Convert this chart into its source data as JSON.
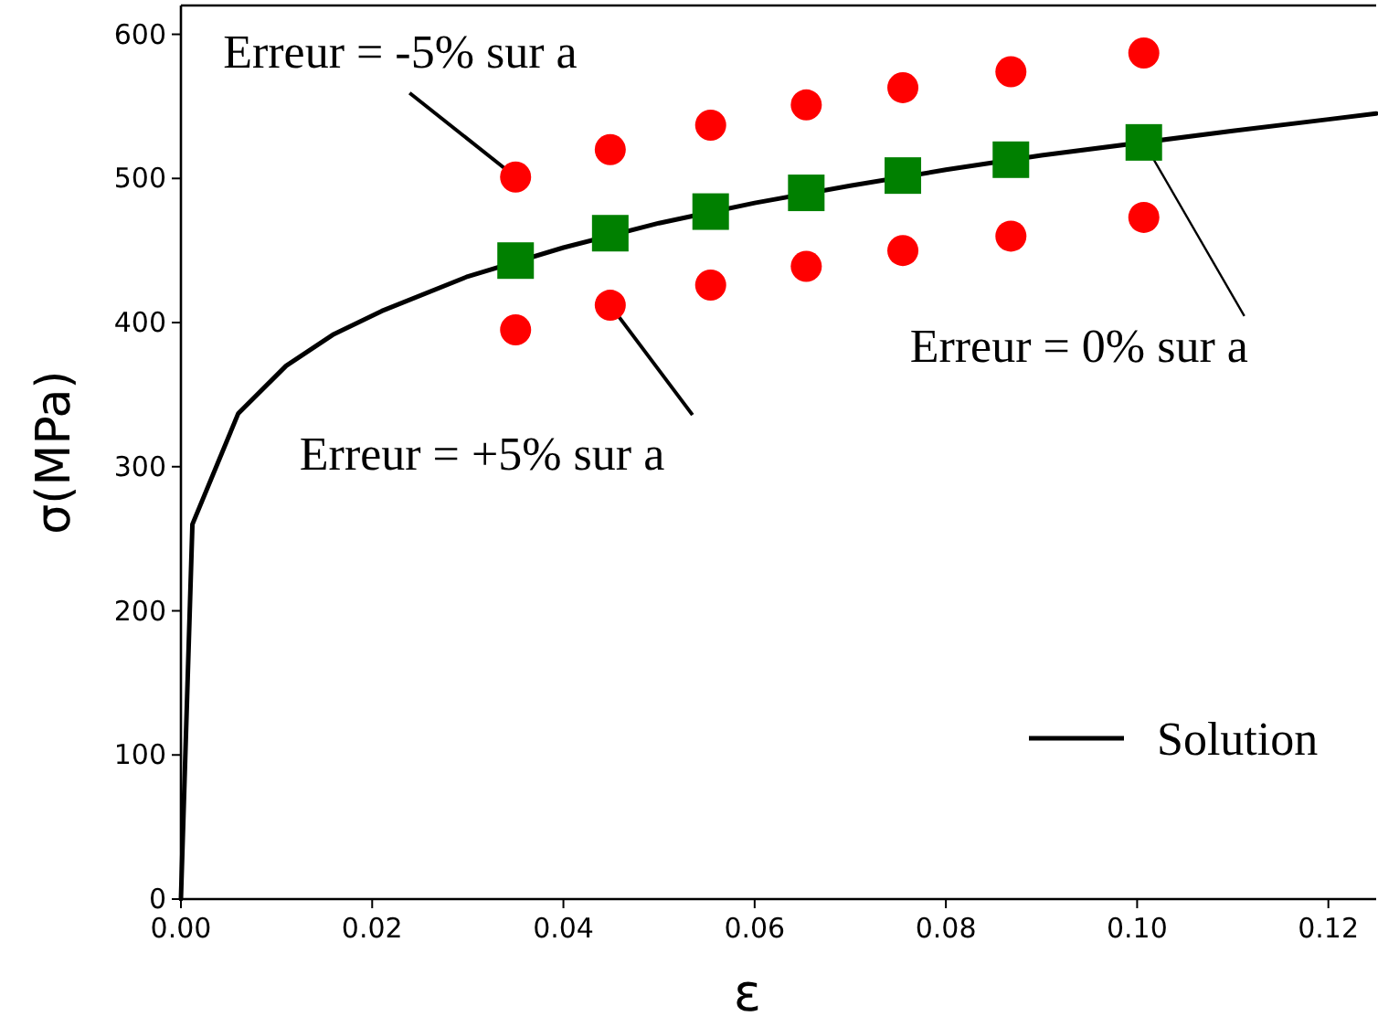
{
  "chart_data": {
    "type": "scatter",
    "xlabel": "ε",
    "ylabel": "σ(MPa)",
    "xlim": [
      0,
      0.125
    ],
    "ylim": [
      0,
      620
    ],
    "xticks": [
      {
        "value": 0,
        "label": "0.00"
      },
      {
        "value": 0.02,
        "label": "0.02"
      },
      {
        "value": 0.04,
        "label": "0.04"
      },
      {
        "value": 0.06,
        "label": "0.06"
      },
      {
        "value": 0.08,
        "label": "0.08"
      },
      {
        "value": 0.1,
        "label": "0.10"
      },
      {
        "value": 0.12,
        "label": "0.12"
      }
    ],
    "yticks": [
      0,
      100,
      200,
      300,
      400,
      500,
      600
    ],
    "grid": false,
    "legend": "bottom right",
    "series": [
      {
        "name": "Solution",
        "type": "line",
        "color": "#000000",
        "marker": "none",
        "line_style": "solid",
        "x": [
          0,
          0.0012,
          0.006,
          0.011,
          0.016,
          0.021,
          0.03,
          0.04,
          0.05,
          0.06,
          0.07,
          0.08,
          0.09,
          0.11,
          0.12,
          0.125
        ],
        "values": [
          0,
          260,
          337,
          370,
          392,
          408,
          432,
          452,
          469,
          483,
          495,
          506,
          516,
          533,
          541,
          545
        ]
      },
      {
        "color": "#ff0000",
        "marker": "circle",
        "x": [
          0.035,
          0.0449,
          0.0554,
          0.0654,
          0.0755,
          0.0868,
          0.1007
        ],
        "values": [
          501,
          520,
          537,
          551,
          563,
          574,
          587
        ]
      },
      {
        "color": "#ff0000",
        "marker": "circle",
        "x": [
          0.035,
          0.0449,
          0.0554,
          0.0654,
          0.0755,
          0.0868,
          0.1007
        ],
        "values": [
          395,
          412,
          426,
          439,
          450,
          460,
          473
        ]
      },
      {
        "color": "#008000",
        "marker": "square",
        "x": [
          0.035,
          0.0449,
          0.0554,
          0.0654,
          0.0755,
          0.0868,
          0.1007
        ],
        "values": [
          443,
          462,
          477,
          490,
          502,
          513,
          525
        ]
      }
    ],
    "annotations": [
      {
        "text": "Erreur = -5% sur a",
        "x": 0.035,
        "y": 501
      },
      {
        "text": "Erreur = +5% sur a",
        "x": 0.0449,
        "y": 412
      },
      {
        "text": "Erreur = 0% sur a",
        "x": 0.1007,
        "y": 525
      }
    ]
  }
}
